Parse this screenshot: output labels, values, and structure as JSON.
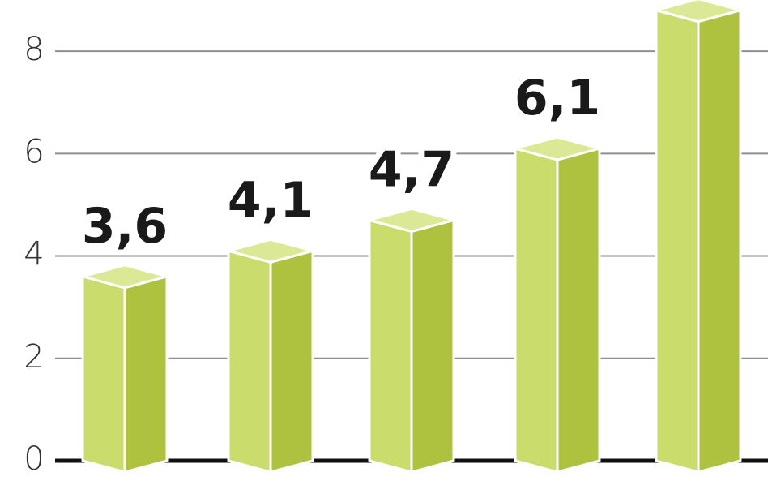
{
  "chart_data": {
    "type": "bar3d",
    "values": [
      3.6,
      4.1,
      4.7,
      6.1,
      8.8
    ],
    "value_labels": [
      "3,6",
      "4,1",
      "4,7",
      "6,1",
      null
    ],
    "colors": {
      "left": "#c9dc6c",
      "right": "#afc23f",
      "top": "#dbe997"
    },
    "ylim": [
      0,
      9
    ],
    "yticks": [
      0,
      2,
      4,
      6,
      8
    ],
    "grid": true
  }
}
